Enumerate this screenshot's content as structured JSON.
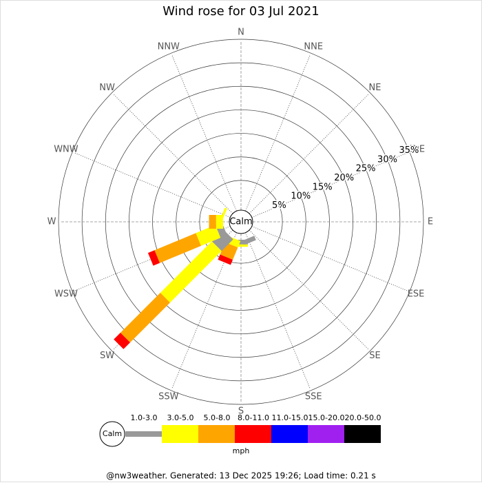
{
  "chart_data": {
    "type": "windrose",
    "title": "Wind rose for 03 Jul 2021",
    "categories": [
      "N",
      "NNE",
      "NE",
      "ENE",
      "E",
      "ESE",
      "SE",
      "SSE",
      "S",
      "SSW",
      "SW",
      "WSW",
      "W",
      "WNW",
      "NW",
      "NNW"
    ],
    "calm_label": "Calm",
    "rlim": [
      0,
      35
    ],
    "rticks": [
      {
        "value": 5,
        "label": "5%"
      },
      {
        "value": 10,
        "label": "10%"
      },
      {
        "value": 15,
        "label": "15%"
      },
      {
        "value": 20,
        "label": "20%"
      },
      {
        "value": 25,
        "label": "25%"
      },
      {
        "value": 30,
        "label": "30%"
      },
      {
        "value": 35,
        "label": "35%"
      }
    ],
    "series": [
      {
        "name": "1.0-3.0",
        "color": "#999999",
        "values": [
          0,
          0,
          0,
          0,
          0,
          0,
          0,
          1,
          1,
          0,
          3.5,
          1.5,
          0,
          0,
          0,
          0
        ]
      },
      {
        "name": "3.0-5.0",
        "color": "#ffff00",
        "values": [
          0,
          0,
          0,
          0,
          0,
          0,
          0,
          0,
          0.5,
          1.5,
          15.5,
          4.5,
          1.5,
          0.5,
          0,
          0
        ]
      },
      {
        "name": "5.0-8.0",
        "color": "#ffa500",
        "values": [
          0,
          0,
          0,
          0,
          0,
          0,
          0,
          0,
          0,
          2.8,
          12,
          9.5,
          1.5,
          0,
          0,
          0
        ]
      },
      {
        "name": "8.0-11.0",
        "color": "#ff0000",
        "values": [
          0,
          0,
          0,
          0,
          0,
          0,
          0,
          0,
          0,
          1.2,
          2,
          1.5,
          0,
          0,
          0,
          0
        ]
      },
      {
        "name": "11.0-15.0",
        "color": "#0000ff",
        "values": [
          0,
          0,
          0,
          0,
          0,
          0,
          0,
          0,
          0,
          0,
          0,
          0,
          0,
          0,
          0,
          0
        ]
      },
      {
        "name": "15.0-20.0",
        "color": "#a020f0",
        "values": [
          0,
          0,
          0,
          0,
          0,
          0,
          0,
          0,
          0,
          0,
          0,
          0,
          0,
          0,
          0,
          0
        ]
      },
      {
        "name": "20.0-50.0",
        "color": "#000000",
        "values": [
          0,
          0,
          0,
          0,
          0,
          0,
          0,
          0,
          0,
          0,
          0,
          0,
          0,
          0,
          0,
          0
        ]
      }
    ],
    "legend_unit": "mph",
    "footer": "@nw3weather. Generated: 13 Dec 2025 19:26; Load time: 0.21 s"
  }
}
